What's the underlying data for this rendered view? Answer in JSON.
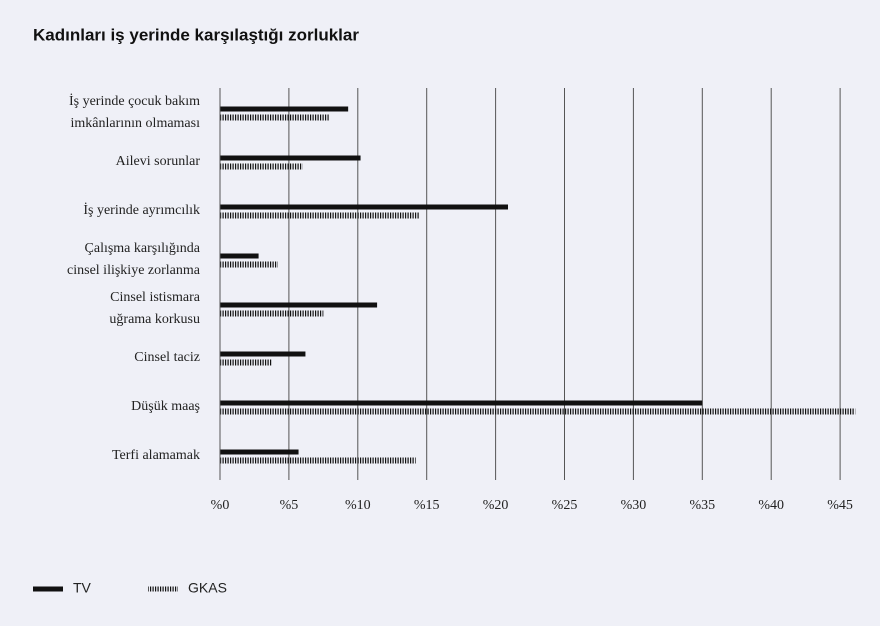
{
  "chart_data": {
    "type": "barh",
    "title": "Kadınları iş yerinde karşılaştığı zorluklar",
    "categories": [
      "İş yerinde çocuk bakım\nimkânlarının olmaması",
      "Ailevi sorunlar",
      "İş yerinde ayrımcılık",
      "Çalışma karşılığında\ncinsel ilişkiye zorlanma",
      "Cinsel istismara\nuğrama korkusu",
      "Cinsel taciz",
      "Düşük maaş",
      "Terfi alamamak"
    ],
    "series": [
      {
        "name": "TV",
        "color": "#111111",
        "style": "solid",
        "values": [
          9.3,
          10.2,
          20.9,
          2.8,
          11.4,
          6.2,
          35,
          5.7
        ]
      },
      {
        "name": "GKAS",
        "color": "#111111",
        "style": "hatched",
        "values": [
          7.9,
          6.0,
          14.5,
          4.2,
          7.5,
          3.8,
          46.1,
          14.2
        ]
      }
    ],
    "xlim": [
      0,
      46.5
    ],
    "xticks": [
      {
        "value": 0,
        "label": "%0"
      },
      {
        "value": 5,
        "label": "%5"
      },
      {
        "value": 10,
        "label": "%10"
      },
      {
        "value": 15,
        "label": "%15"
      },
      {
        "value": 20,
        "label": "%20"
      },
      {
        "value": 25,
        "label": "%25"
      },
      {
        "value": 30,
        "label": "%30"
      },
      {
        "value": 35,
        "label": "%35"
      },
      {
        "value": 40,
        "label": "%40"
      },
      {
        "value": 45,
        "label": "%45"
      }
    ],
    "grid": true,
    "legend": "bottom-left"
  }
}
